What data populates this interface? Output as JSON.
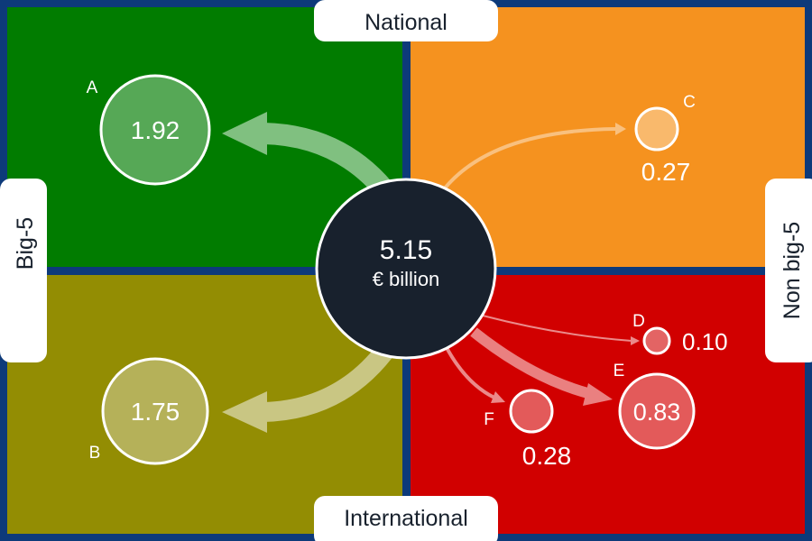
{
  "center": {
    "value": "5.15",
    "unit": "€ billion"
  },
  "labels": {
    "top": "National",
    "bottom": "International",
    "left": "Big-5",
    "right": "Non big-5"
  },
  "nodes": [
    {
      "letter": "A",
      "value": "1.92"
    },
    {
      "letter": "B",
      "value": "1.75"
    },
    {
      "letter": "C",
      "value": "0.27"
    },
    {
      "letter": "D",
      "value": "0.10"
    },
    {
      "letter": "E",
      "value": "0.83"
    },
    {
      "letter": "F",
      "value": "0.28"
    }
  ],
  "colors": {
    "frame": "#0d3a7a",
    "national_big5": "#017c00",
    "national_nonbig5": "#f5921f",
    "international_big5": "#938d03",
    "international_nonbig5": "#d10000",
    "center": "#18212d"
  }
}
